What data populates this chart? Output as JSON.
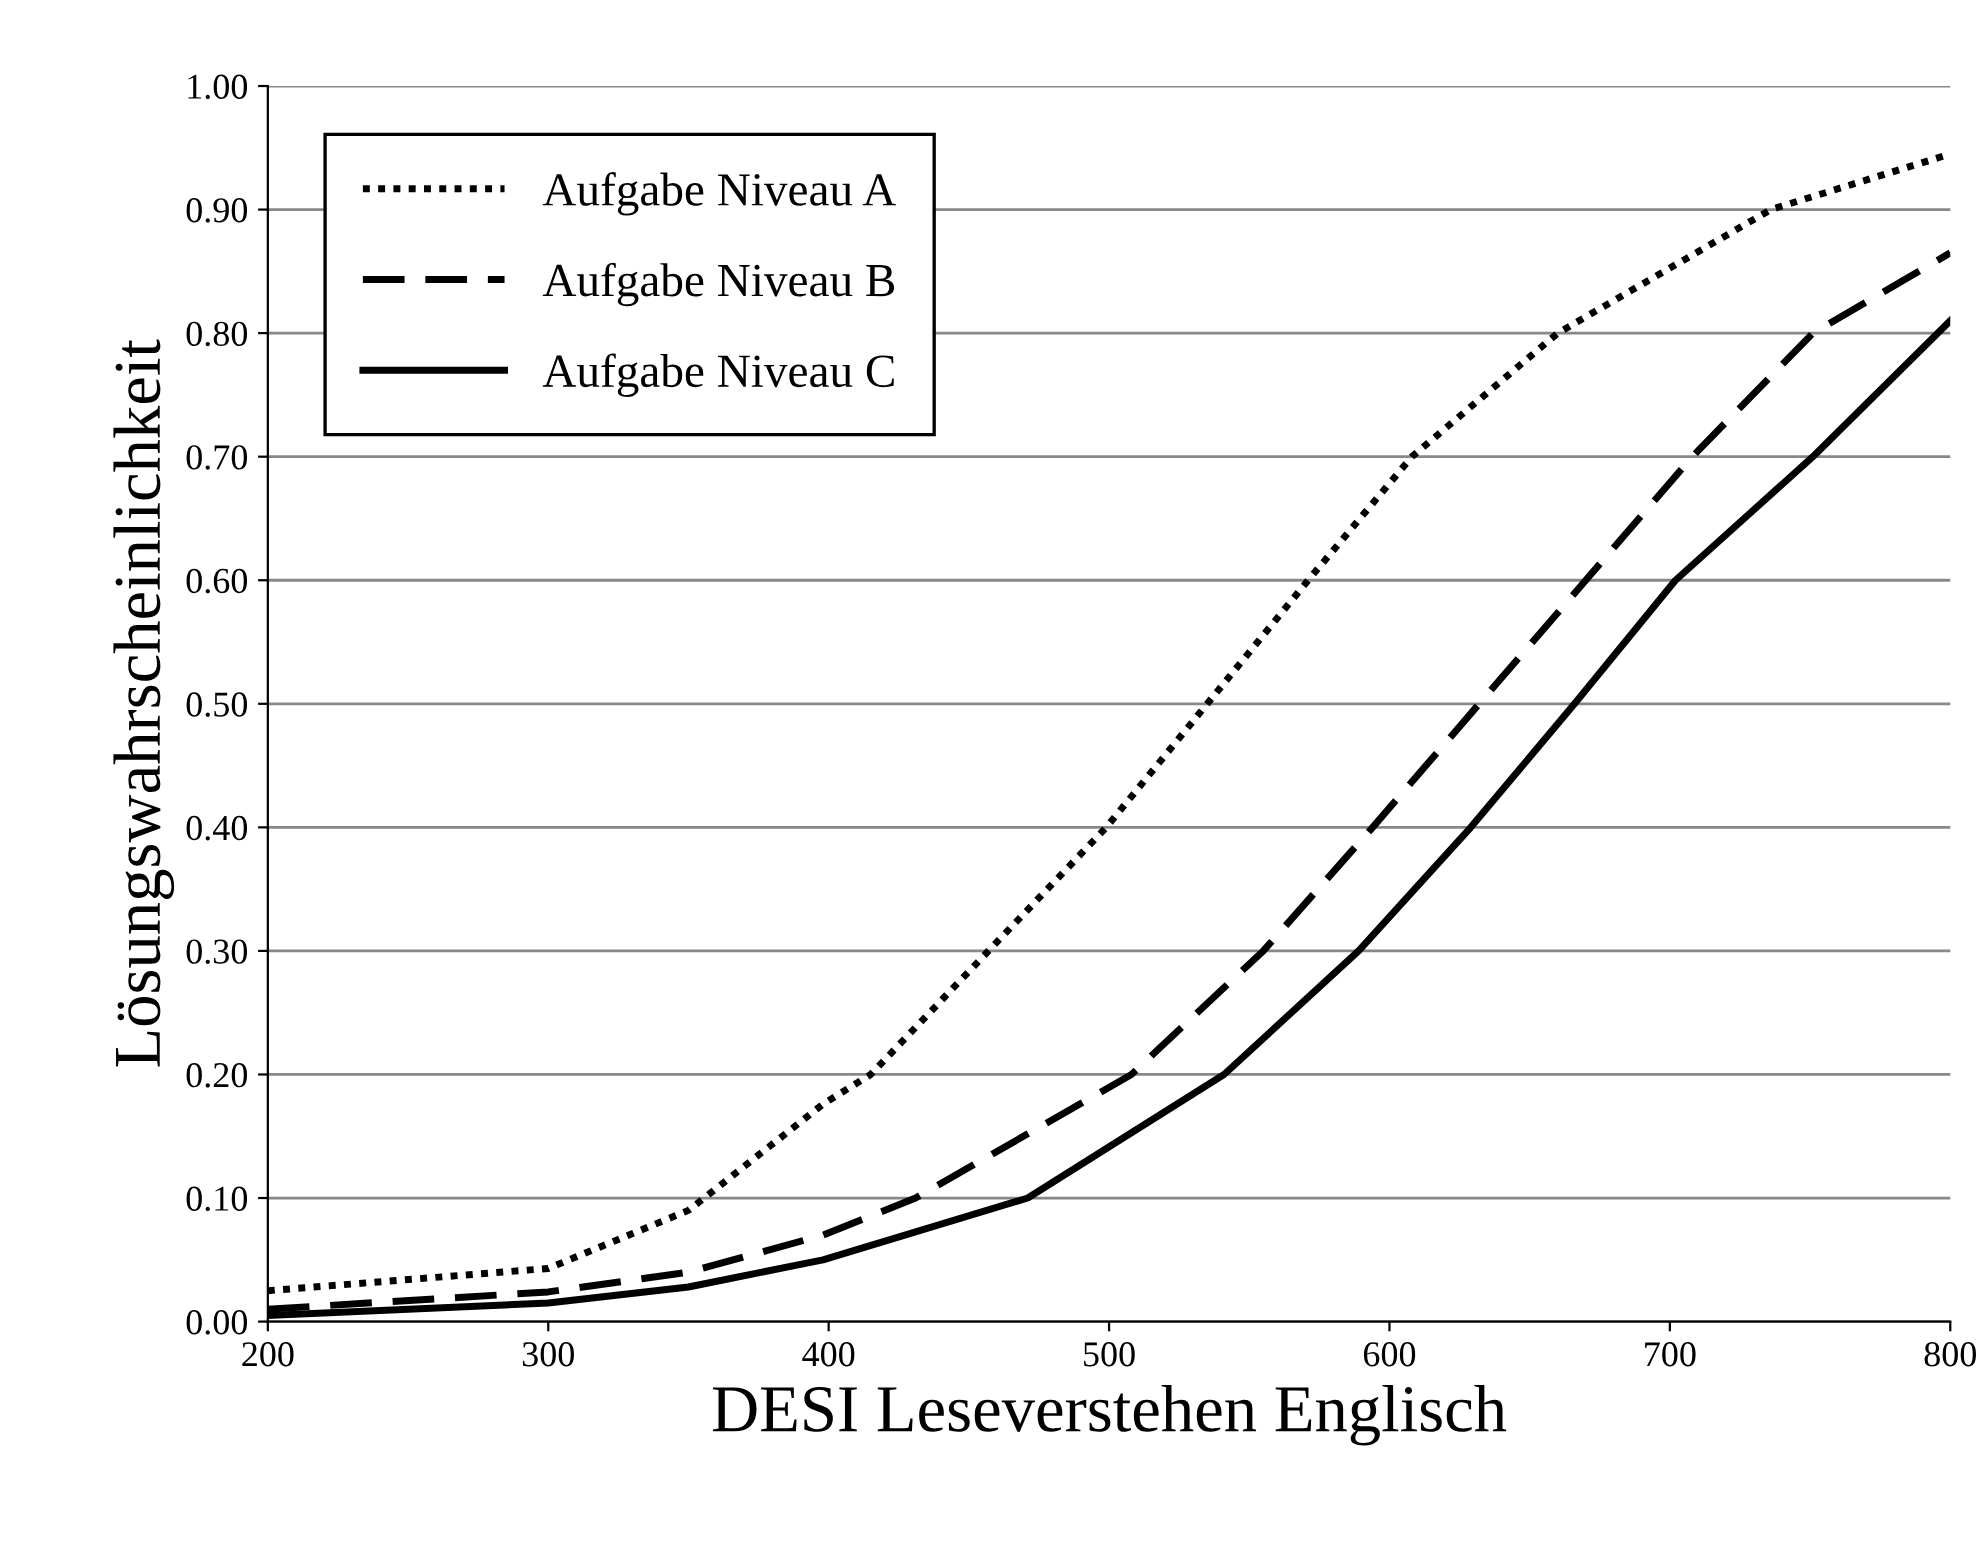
{
  "chart_data": {
    "type": "line",
    "xlabel": "DESI Leseverstehen Englisch",
    "ylabel": "Lösungswahrscheinlichkeit",
    "xlim": [
      200,
      800
    ],
    "xticks": [
      200,
      300,
      400,
      500,
      600,
      700,
      800
    ],
    "ylim": [
      0,
      1
    ],
    "yticks": [
      {
        "value": 0,
        "label": "0.00"
      },
      {
        "value": 0.1,
        "label": "0.10"
      },
      {
        "value": 0.2,
        "label": "0.20"
      },
      {
        "value": 0.3,
        "label": "0.30"
      },
      {
        "value": 0.4,
        "label": "0.40"
      },
      {
        "value": 0.5,
        "label": "0.50"
      },
      {
        "value": 0.6,
        "label": "0.60"
      },
      {
        "value": 0.7,
        "label": "0.70"
      },
      {
        "value": 0.8,
        "label": "0.80"
      },
      {
        "value": 0.9,
        "label": "0.90"
      },
      {
        "value": 1,
        "label": "1.00"
      }
    ],
    "grid": "y",
    "legend": "top left",
    "marker": "none",
    "series": [
      {
        "name": "Aufgabe Niveau A",
        "color": "#000000",
        "line_style": "dotted",
        "x": [
          200,
          300,
          350,
          398,
          415,
          457,
          499,
          535,
          571,
          608,
          660,
          736,
          800
        ],
        "values": [
          0.025,
          0.043,
          0.09,
          0.176,
          0.2,
          0.3,
          0.4,
          0.5,
          0.6,
          0.7,
          0.8,
          0.9,
          0.945
        ]
      },
      {
        "name": "Aufgabe Niveau B",
        "color": "#000000",
        "line_style": "dashed",
        "x": [
          200,
          300,
          350,
          398,
          431,
          508,
          555,
          594,
          632,
          670,
          708,
          751,
          800
        ],
        "values": [
          0.01,
          0.024,
          0.04,
          0.07,
          0.1,
          0.2,
          0.3,
          0.4,
          0.5,
          0.6,
          0.7,
          0.8,
          0.865
        ]
      },
      {
        "name": "Aufgabe Niveau C",
        "color": "#000000",
        "line_style": "solid",
        "x": [
          200,
          300,
          350,
          398,
          471,
          541,
          589,
          629,
          666,
          702,
          751,
          800
        ],
        "values": [
          0.005,
          0.015,
          0.028,
          0.05,
          0.1,
          0.2,
          0.3,
          0.4,
          0.5,
          0.6,
          0.7,
          0.81
        ]
      }
    ]
  }
}
